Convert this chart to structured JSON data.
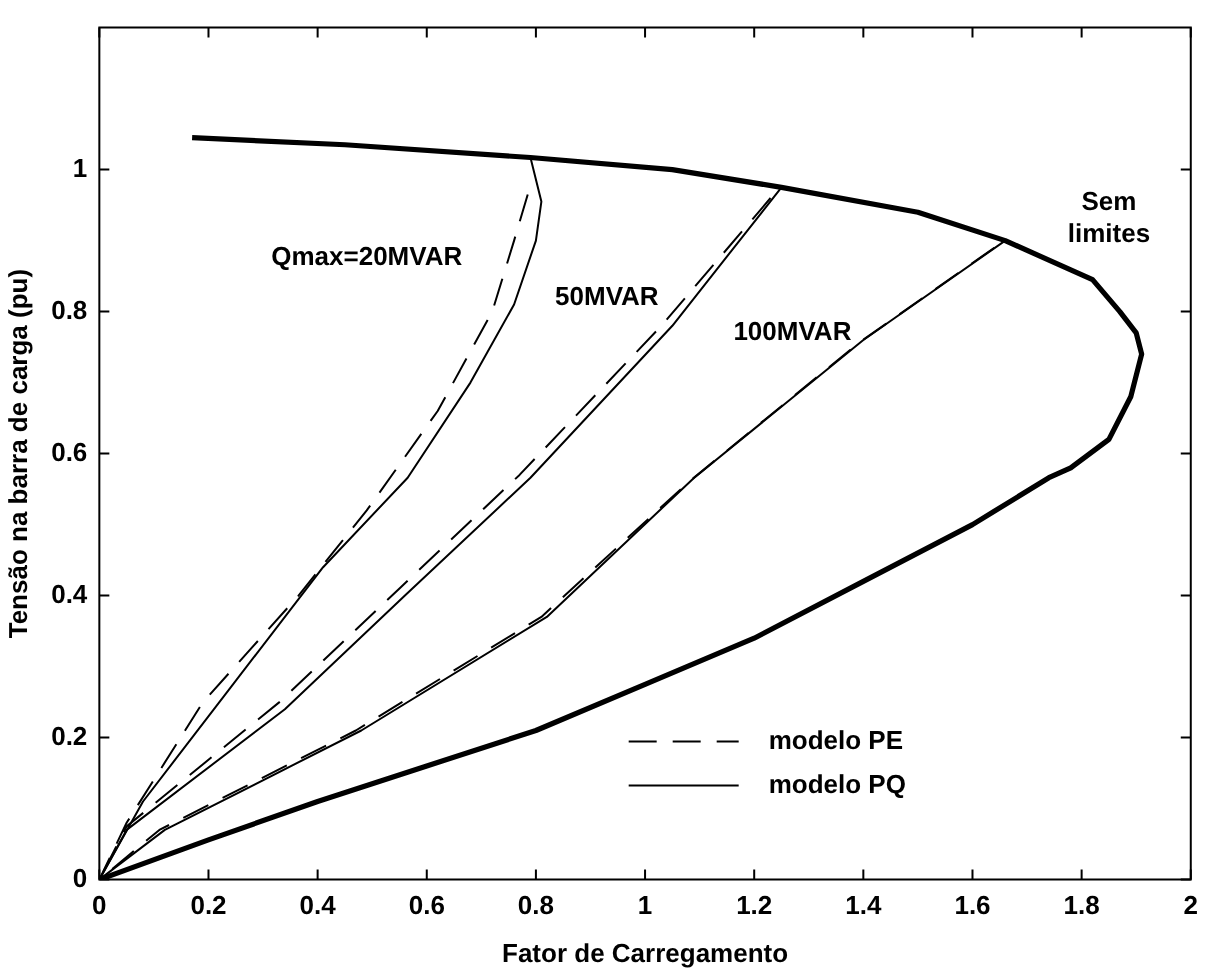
{
  "chart_data": {
    "type": "line",
    "xlabel": "Fator de Carregamento",
    "ylabel": "Tensão na barra de carga (pu)",
    "xlim": [
      0,
      2
    ],
    "ylim": [
      0,
      1.2
    ],
    "xticks": [
      0,
      0.2,
      0.4,
      0.6,
      0.8,
      1,
      1.2,
      1.4,
      1.6,
      1.8,
      2
    ],
    "yticks": [
      0,
      0.2,
      0.4,
      0.6,
      0.8,
      1
    ],
    "grid": false,
    "legend": "bottom right",
    "marker": "none",
    "series": [
      {
        "color": "#000000",
        "line_style": "solid",
        "x": [
          0.17,
          0.45,
          0.79,
          1.05,
          1.25,
          1.5,
          1.66,
          1.82,
          1.87,
          1.9,
          1.91,
          1.89,
          1.85,
          1.78,
          1.74,
          1.6,
          1.4,
          1.2,
          1,
          0.8,
          0.6,
          0.4,
          0.2,
          0
        ],
        "values": [
          1.045,
          1.035,
          1.017,
          1.0,
          0.975,
          0.94,
          0.9,
          0.845,
          0.8,
          0.77,
          0.74,
          0.68,
          0.62,
          0.58,
          0.566,
          0.5,
          0.42,
          0.34,
          0.275,
          0.21,
          0.16,
          0.11,
          0.056,
          0
        ]
      },
      {
        "name": "modelo PE",
        "color": "#000000",
        "line_style": "dashed",
        "x": [
          0.785,
          0.76,
          0.72,
          0.62,
          0.49,
          0.365,
          0.19,
          0.05,
          0
        ],
        "values": [
          0.965,
          0.9,
          0.8,
          0.66,
          0.52,
          0.4,
          0.25,
          0.08,
          0
        ]
      },
      {
        "color": "#000000",
        "line_style": "dashed",
        "x": [
          1.23,
          1.03,
          0.77,
          0.55,
          0.33,
          0.05,
          0
        ],
        "values": [
          0.96,
          0.78,
          0.57,
          0.41,
          0.25,
          0.075,
          0
        ]
      },
      {
        "color": "#000000",
        "line_style": "dashed",
        "x": [
          1.64,
          1.39,
          1.08,
          0.81,
          0.47,
          0.11,
          0
        ],
        "values": [
          0.89,
          0.755,
          0.56,
          0.37,
          0.21,
          0.07,
          0
        ]
      },
      {
        "name": "modelo PQ",
        "color": "#000000",
        "line_style": "solid",
        "x": [
          0.79,
          0.81,
          0.8,
          0.76,
          0.68,
          0.565,
          0.41,
          0.24,
          0.08,
          0
        ],
        "values": [
          1.017,
          0.955,
          0.9,
          0.81,
          0.7,
          0.566,
          0.44,
          0.27,
          0.11,
          0
        ]
      },
      {
        "color": "#000000",
        "line_style": "solid",
        "x": [
          1.25,
          1.05,
          0.79,
          0.56,
          0.34,
          0.05,
          0
        ],
        "values": [
          0.975,
          0.78,
          0.566,
          0.4,
          0.24,
          0.07,
          0
        ]
      },
      {
        "color": "#000000",
        "line_style": "solid",
        "x": [
          1.66,
          1.4,
          1.09,
          0.82,
          0.48,
          0.12,
          0
        ],
        "values": [
          0.9,
          0.76,
          0.566,
          0.37,
          0.21,
          0.07,
          0
        ]
      }
    ],
    "annotations": [
      "Qmax=20MVAR",
      "50MVAR",
      "100MVAR",
      "Sem\nlimites"
    ]
  }
}
